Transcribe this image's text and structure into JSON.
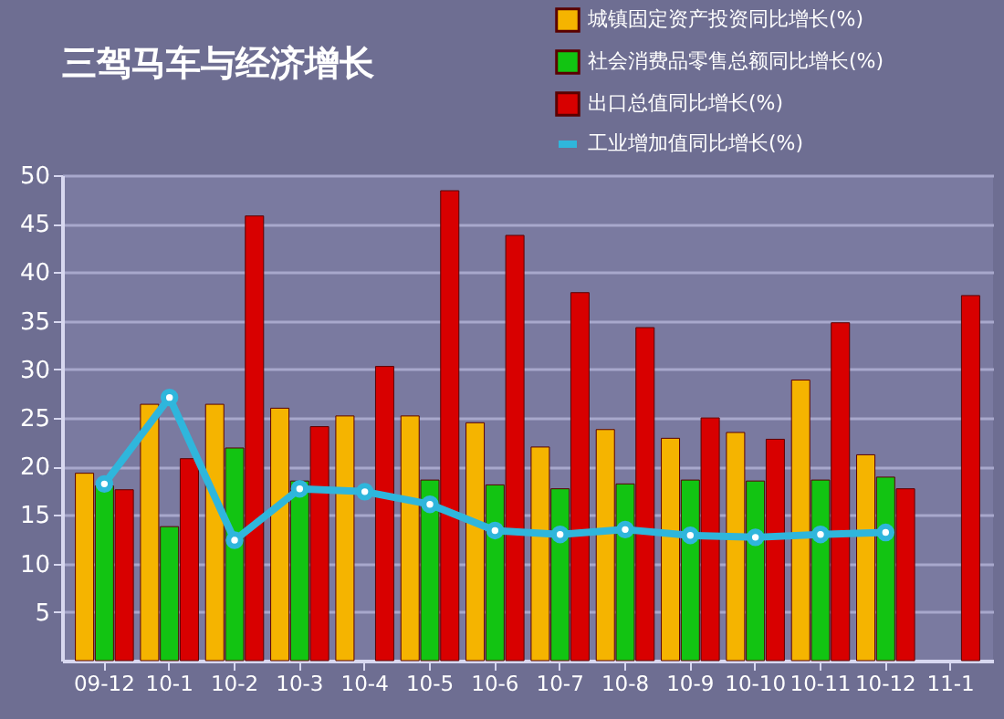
{
  "chart_data": {
    "type": "bar",
    "title": "三驾马车与经济增长",
    "categories": [
      "09-12",
      "10-1",
      "10-2",
      "10-3",
      "10-4",
      "10-5",
      "10-6",
      "10-7",
      "10-8",
      "10-9",
      "10-10",
      "10-11",
      "10-12",
      "11-1"
    ],
    "series": [
      {
        "name": "城镇固定资产投资同比增长(%)",
        "color": "#f5b400",
        "values": [
          19.3,
          26.4,
          26.4,
          26,
          25.2,
          25.2,
          24.5,
          22,
          23.8,
          22.9,
          23.5,
          28.9,
          21.2,
          null
        ]
      },
      {
        "name": "社会消费品零售总额同比增长(%)",
        "color": "#12c412",
        "values": [
          18,
          13.8,
          21.9,
          18.5,
          null,
          18.6,
          18.1,
          17.7,
          18.2,
          18.6,
          18.5,
          18.6,
          18.9,
          null
        ]
      },
      {
        "name": "出口总值同比增长(%)",
        "color": "#d80000",
        "values": [
          17.6,
          20.8,
          45.8,
          24.1,
          30.3,
          48.4,
          43.8,
          37.9,
          34.3,
          25,
          22.8,
          34.8,
          17.7,
          37.6
        ]
      },
      {
        "name": "工业增加值同比增长(%)",
        "type": "line",
        "color": "#2fb6dc",
        "values": [
          18.2,
          27.1,
          12.4,
          17.7,
          17.4,
          16.1,
          13.4,
          13,
          13.5,
          12.9,
          12.7,
          13,
          13.2,
          null
        ]
      }
    ],
    "ylim": [
      0,
      50
    ],
    "yticks": [
      5,
      10,
      15,
      20,
      25,
      30,
      35,
      40,
      45,
      50
    ],
    "grid": "y",
    "legend": "top right",
    "marker": "circle"
  }
}
